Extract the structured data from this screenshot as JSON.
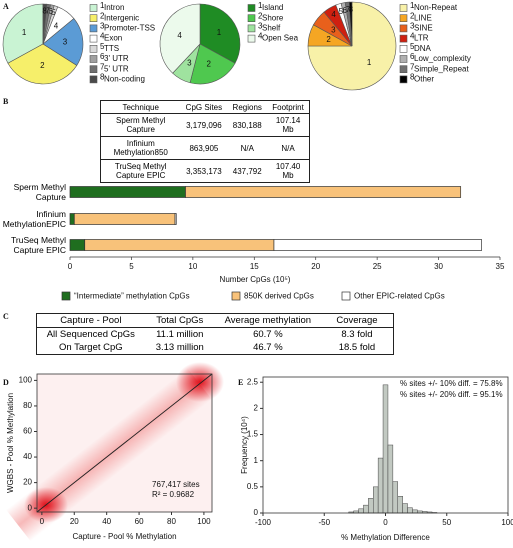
{
  "panel_labels": [
    "A",
    "B",
    "C",
    "D",
    "E"
  ],
  "chart_data": [
    {
      "type": "pie",
      "direction": "counterclockwise",
      "categories": [
        "Intron",
        "Intergenic",
        "Promoter-TSS",
        "Exon",
        "TTS",
        "3' UTR",
        "5' UTR",
        "Non-coding"
      ],
      "slice_labels": [
        "1",
        "2",
        "3",
        "4",
        "5",
        "6",
        "7",
        "8"
      ],
      "values": [
        33,
        33,
        20,
        8,
        1.5,
        1.5,
        1.5,
        1.5
      ],
      "colors": [
        "#c9f3d3",
        "#f6ef6a",
        "#5b9bd5",
        "#ffffff",
        "#d9d9d9",
        "#a0a0a0",
        "#707070",
        "#4a4a4a"
      ]
    },
    {
      "type": "pie",
      "direction": "clockwise",
      "categories": [
        "Island",
        "Shore",
        "Shelf",
        "Open Sea"
      ],
      "slice_labels": [
        "1",
        "2",
        "3",
        "4"
      ],
      "values": [
        33,
        21,
        8,
        38
      ],
      "colors": [
        "#1f8c24",
        "#4fc84f",
        "#9fe39f",
        "#ecfaec"
      ]
    },
    {
      "type": "pie",
      "direction": "clockwise",
      "categories": [
        "Non-Repeat",
        "LINE",
        "SINE",
        "LTR",
        "DNA",
        "Low_complexity",
        "Simple_Repeat",
        "Other"
      ],
      "slice_labels": [
        "1",
        "2",
        "3",
        "4",
        "5",
        "6",
        "7",
        "8"
      ],
      "values": [
        75,
        8,
        6,
        5,
        2,
        1.5,
        1.5,
        1
      ],
      "colors": [
        "#f8f1a8",
        "#f5a623",
        "#e8601c",
        "#cf2010",
        "#ffffff",
        "#b0b0b0",
        "#707070",
        "#000000"
      ]
    },
    {
      "type": "bar",
      "orientation": "horizontal",
      "stacked": true,
      "categories": [
        "Sperm Methyl Capture",
        "Infinium MethylationEPIC",
        "TruSeq Methyl Capture EPIC"
      ],
      "series": [
        {
          "name": "“Intermediate” methylation CpGs",
          "color": "#1f6e1f",
          "values": [
            9.4,
            0.35,
            1.2
          ]
        },
        {
          "name": "850K derived CpGs",
          "color": "#f8c27a",
          "values": [
            22.4,
            8.2,
            15.4
          ]
        },
        {
          "name": "Other EPIC-related CpGs",
          "color": "#ffffff",
          "values": [
            0,
            0.1,
            16.9
          ]
        }
      ],
      "xlim": [
        0,
        35
      ],
      "xticks": [
        0,
        5,
        10,
        15,
        20,
        25,
        30,
        35
      ],
      "xlabel": "Number CpGs (10⁵)"
    },
    {
      "type": "density",
      "xlim": [
        -3,
        105
      ],
      "ylim": [
        -3,
        105
      ],
      "xticks": [
        0,
        20,
        40,
        60,
        80,
        100
      ],
      "yticks": [
        0,
        20,
        40,
        60,
        80,
        100
      ],
      "xlabel": "Capture - Pool % Methylation",
      "ylabel": "WGBS - Pool % Methylation",
      "annotations": [
        "767,417 sites",
        "R² = 0.9682"
      ]
    },
    {
      "type": "histogram",
      "color": "#c2c9c2",
      "bins": [
        -30,
        -26,
        -22,
        -18,
        -14,
        -10,
        -6,
        -2,
        2,
        6,
        10,
        14,
        18,
        22,
        26,
        30,
        34,
        38,
        42
      ],
      "values": [
        0.02,
        0.04,
        0.08,
        0.15,
        0.28,
        0.5,
        1.05,
        2.45,
        1.3,
        0.6,
        0.32,
        0.18,
        0.1,
        0.06,
        0.04,
        0.03,
        0.02,
        0.01
      ],
      "xlim": [
        -100,
        100
      ],
      "xticks": [
        -100,
        -50,
        0,
        50,
        100
      ],
      "ylim": [
        0,
        2.6
      ],
      "yticks": [
        0,
        0.5,
        1,
        1.5,
        2,
        2.5
      ],
      "xlabel": "% Methylation Difference",
      "ylabel": "Frequency (10⁴)",
      "annotations": [
        "% sites +/- 10% diff. = 75.8%",
        "% sites +/- 20% diff. = 95.1%"
      ]
    }
  ],
  "tables": [
    {
      "header": [
        "Technique",
        "CpG Sites",
        "Regions",
        "Footprint"
      ],
      "rows": [
        [
          "Sperm Methyl Capture",
          "3,179,096",
          "830,188",
          "107.14 Mb"
        ],
        [
          "Infinium Methylation850",
          "863,905",
          "N/A",
          "N/A"
        ],
        [
          "TruSeq Methyl Capture EPIC",
          "3,353,173",
          "437,792",
          "107.40 Mb"
        ]
      ]
    },
    {
      "header": [
        "Capture - Pool",
        "Total CpGs",
        "Average methylation",
        "Coverage"
      ],
      "rows": [
        [
          "All Sequenced CpGs",
          "11.1 million",
          "60.7 %",
          "8.3 fold"
        ],
        [
          "On Target CpG",
          "3.13 million",
          "46.7 %",
          "18.5 fold"
        ]
      ]
    }
  ]
}
